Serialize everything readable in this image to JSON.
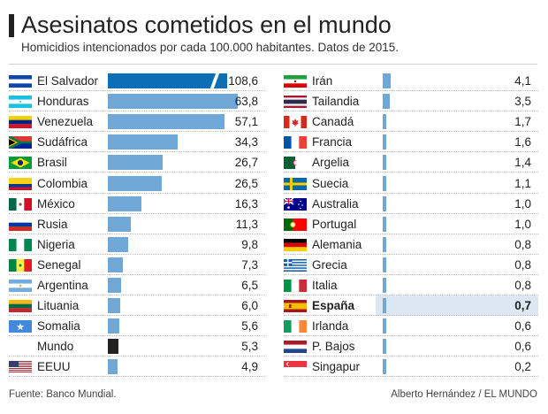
{
  "title": "Asesinatos cometidos en el mundo",
  "subtitle": "Homicidios intencionados por cada 100.000 habitantes. Datos de 2015.",
  "source": "Fuente: Banco Mundial.",
  "credit": "Alberto Hernández / EL MUNDO",
  "colors": {
    "bar": "#6fa8d6",
    "bar_max": "#0e6eb5",
    "world": "#222222",
    "highlight": "#dbe8f3"
  },
  "chart_data": {
    "type": "bar",
    "orientation": "horizontal",
    "unit": "Homicidios intencionados por cada 100.000 habitantes",
    "year": 2015,
    "categories": [
      "El Salvador",
      "Honduras",
      "Venezuela",
      "Sudáfrica",
      "Brasil",
      "Colombia",
      "México",
      "Rusia",
      "Nigeria",
      "Senegal",
      "Argentina",
      "Lituania",
      "Somalia",
      "Mundo",
      "EEUU",
      "Irán",
      "Tailandia",
      "Canadá",
      "Francia",
      "Argelia",
      "Suecia",
      "Australia",
      "Portugal",
      "Alemania",
      "Grecia",
      "Italia",
      "España",
      "Irlanda",
      "P. Bajos",
      "Singapur"
    ],
    "values": [
      108.6,
      63.8,
      57.1,
      34.3,
      26.7,
      26.5,
      16.3,
      11.3,
      9.8,
      7.3,
      6.5,
      6.0,
      5.6,
      5.3,
      4.9,
      4.1,
      3.5,
      1.7,
      1.6,
      1.4,
      1.1,
      1.0,
      1.0,
      0.8,
      0.8,
      0.8,
      0.7,
      0.6,
      0.6,
      0.2
    ],
    "value_labels": [
      "108,6",
      "63,8",
      "57,1",
      "34,3",
      "26,7",
      "26,5",
      "16,3",
      "11,3",
      "9,8",
      "7,3",
      "6,5",
      "6,0",
      "5,6",
      "5,3",
      "4,9",
      "4,1",
      "3,5",
      "1,7",
      "1,6",
      "1,4",
      "1,1",
      "1,0",
      "1,0",
      "0,8",
      "0,8",
      "0,8",
      "0,7",
      "0,6",
      "0,6",
      "0,2"
    ],
    "flags": [
      "el-salvador-flag-icon",
      "honduras-flag-icon",
      "venezuela-flag-icon",
      "south-africa-flag-icon",
      "brazil-flag-icon",
      "colombia-flag-icon",
      "mexico-flag-icon",
      "russia-flag-icon",
      "nigeria-flag-icon",
      "senegal-flag-icon",
      "argentina-flag-icon",
      "lithuania-flag-icon",
      "somalia-flag-icon",
      "",
      "usa-flag-icon",
      "iran-flag-icon",
      "thailand-flag-icon",
      "canada-flag-icon",
      "france-flag-icon",
      "algeria-flag-icon",
      "sweden-flag-icon",
      "australia-flag-icon",
      "portugal-flag-icon",
      "germany-flag-icon",
      "greece-flag-icon",
      "italy-flag-icon",
      "spain-flag-icon",
      "ireland-flag-icon",
      "netherlands-flag-icon",
      "singapore-flag-icon"
    ],
    "highlighted": "España",
    "world_reference": "Mundo",
    "axis_break_on_max": true,
    "xlabel": "",
    "ylabel": ""
  }
}
